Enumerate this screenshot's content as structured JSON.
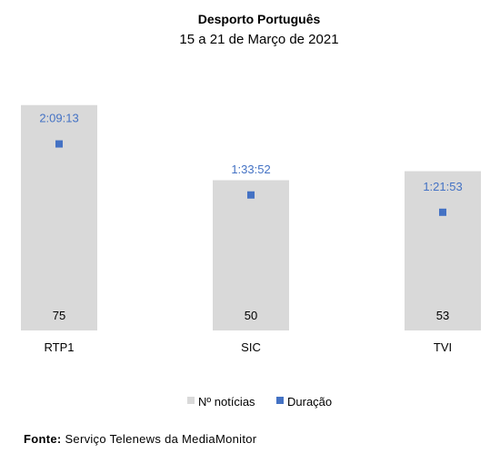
{
  "chart_data": {
    "type": "bar",
    "title": "Desporto Português",
    "subtitle": "15 a 21 de Março de 2021",
    "categories": [
      "RTP1",
      "SIC",
      "TVI"
    ],
    "series": [
      {
        "name": "Nº notícias",
        "type": "bar",
        "values": [
          75,
          50,
          53
        ],
        "color": "#d9d9d9"
      },
      {
        "name": "Duração",
        "type": "scatter",
        "values": [
          "2:09:13",
          "1:33:52",
          "1:21:53"
        ],
        "color": "#4472c4"
      }
    ],
    "legend_position": "bottom",
    "grid": false
  },
  "colors": {
    "bar": "#d9d9d9",
    "marker": "#4472c4",
    "duration_label": "#4472c4"
  },
  "source": {
    "label": "Fonte:",
    "text": "Serviço Telenews da MediaMonitor"
  }
}
